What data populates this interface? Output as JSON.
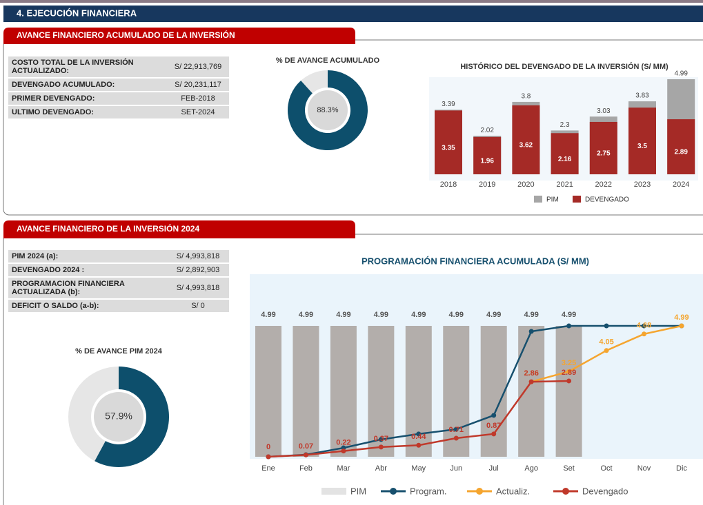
{
  "header": "4. EJECUCIÓN FINANCIERA",
  "panel1": {
    "title": "AVANCE FINANCIERO ACUMULADO DE LA INVERSIÓN",
    "rows": [
      [
        "COSTO TOTAL DE LA INVERSIÓN ACTUALIZADO:",
        "S/ 22,913,769"
      ],
      [
        "DEVENGADO ACUMULADO:",
        "S/ 20,231,117"
      ],
      [
        "PRIMER DEVENGADO:",
        "FEB-2018"
      ],
      [
        "ULTIMO DEVENGADO:",
        "SET-2024"
      ]
    ],
    "donut": {
      "type": "pie",
      "title": "% DE AVANCE ACUMULADO",
      "values": [
        88.3
      ],
      "value_labels": [
        "88.3%"
      ],
      "color": "#0d4f6c",
      "track_color": "#e6e6e6"
    },
    "chart": {
      "type": "bar",
      "title": "HISTÓRICO DEL DEVENGADO DE LA INVERSIÓN (S/ MM)",
      "categories": [
        "2018",
        "2019",
        "2020",
        "2021",
        "2022",
        "2023",
        "2024"
      ],
      "series": [
        {
          "name": "PIM",
          "color": "#a6a6a6",
          "values": [
            3.39,
            2.02,
            3.8,
            2.3,
            3.03,
            3.83,
            4.99
          ]
        },
        {
          "name": "DEVENGADO",
          "color": "#a52a26",
          "values": [
            3.35,
            1.96,
            3.62,
            2.16,
            2.75,
            3.5,
            2.89
          ]
        }
      ],
      "ylim": [
        0,
        5
      ]
    }
  },
  "panel2": {
    "title": "AVANCE FINANCIERO DE LA INVERSIÓN 2024",
    "rows": [
      [
        "PIM 2024 (a):",
        "S/ 4,993,818"
      ],
      [
        "DEVENGADO 2024 :",
        "S/ 2,892,903"
      ],
      [
        "PROGRAMACION FINANCIERA ACTUALIZADA (b):",
        "S/ 4,993,818"
      ],
      [
        "DEFICIT O SALDO (a-b):",
        "S/ 0"
      ]
    ],
    "donut": {
      "type": "pie",
      "title": "% DE AVANCE PIM 2024",
      "values": [
        57.9
      ],
      "value_labels": [
        "57.9%"
      ],
      "color": "#0d4f6c",
      "track_color": "#e6e6e6"
    },
    "chart": {
      "type": "line",
      "title": "PROGRAMACIÓN FINANCIERA ACUMULADA (S/ MM)",
      "categories": [
        "Ene",
        "Feb",
        "Mar",
        "Abr",
        "May",
        "Jun",
        "Jul",
        "Ago",
        "Set",
        "Oct",
        "Nov",
        "Dic"
      ],
      "series": [
        {
          "name": "PIM",
          "kind": "bar",
          "color": "#b3aeab",
          "values": [
            4.99,
            4.99,
            4.99,
            4.99,
            4.99,
            4.99,
            4.99,
            4.99,
            4.99,
            null,
            null,
            null
          ]
        },
        {
          "name": "Program.",
          "color": "#17506e",
          "values": [
            0,
            0.08,
            0.34,
            0.66,
            0.87,
            1.05,
            1.58,
            4.78,
            4.99,
            4.99,
            4.99,
            4.99
          ]
        },
        {
          "name": "Actualiz.",
          "color": "#f5a52f",
          "values": [
            null,
            null,
            null,
            null,
            null,
            null,
            null,
            2.86,
            3.25,
            4.05,
            4.68,
            4.99
          ],
          "labels": true
        },
        {
          "name": "Devengado",
          "color": "#c0392b",
          "values": [
            0,
            0.07,
            0.22,
            0.37,
            0.44,
            0.71,
            0.87,
            2.86,
            2.89,
            null,
            null,
            null
          ],
          "labels": true
        }
      ],
      "ylim": [
        0,
        5
      ]
    }
  }
}
